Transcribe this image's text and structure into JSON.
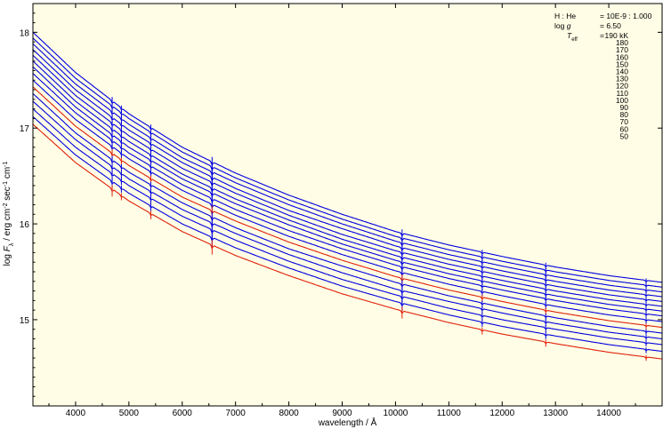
{
  "chart_data": {
    "type": "line",
    "xlabel": "wavelength / Å",
    "ylabel": {
      "parts": [
        "log ",
        "F",
        "λ",
        " / erg cm",
        "-2",
        " sec",
        "-1",
        " cm",
        "-1"
      ]
    },
    "xlim": [
      3200,
      15000
    ],
    "ylim": [
      14.1,
      18.3
    ],
    "xticks": [
      4000,
      5000,
      6000,
      7000,
      8000,
      9000,
      10000,
      11000,
      12000,
      13000,
      14000
    ],
    "yticks": [
      15,
      16,
      17,
      18
    ],
    "grid": false,
    "legend": "top-right",
    "background": "#fffde5",
    "colors": {
      "blue": "#0000e0",
      "red": "#e0200a",
      "axis": "#000000"
    },
    "params": [
      {
        "key": "H : He",
        "value": "= 10E-9 : 1.000"
      },
      {
        "key": "log g",
        "value": "= 6.50"
      },
      {
        "key": "Teff",
        "value": "="
      }
    ],
    "param_labels": {
      "logg_base": "log ",
      "logg_italic": "g",
      "teff_T": "T",
      "teff_sub": "eff"
    },
    "series": [
      {
        "name": "190 kK",
        "color": "#0000e0",
        "x": [
          3200,
          4000,
          5000,
          6000,
          7000,
          8000,
          9000,
          10000,
          11000,
          12000,
          13000,
          14000,
          15000
        ],
        "y": [
          18.0,
          17.58,
          17.15,
          16.8,
          16.53,
          16.3,
          16.1,
          15.92,
          15.78,
          15.66,
          15.55,
          15.46,
          15.39
        ]
      },
      {
        "name": "180",
        "color": "#0000e0",
        "x": [
          3200,
          4000,
          5000,
          6000,
          7000,
          8000,
          9000,
          10000,
          11000,
          12000,
          13000,
          14000,
          15000
        ],
        "y": [
          17.94,
          17.52,
          17.1,
          16.75,
          16.48,
          16.25,
          16.05,
          15.87,
          15.73,
          15.61,
          15.5,
          15.41,
          15.34
        ]
      },
      {
        "name": "170",
        "color": "#0000e0",
        "x": [
          3200,
          4000,
          5000,
          6000,
          7000,
          8000,
          9000,
          10000,
          11000,
          12000,
          13000,
          14000,
          15000
        ],
        "y": [
          17.88,
          17.46,
          17.04,
          16.69,
          16.43,
          16.2,
          16.0,
          15.82,
          15.68,
          15.56,
          15.45,
          15.36,
          15.29
        ]
      },
      {
        "name": "160",
        "color": "#0000e0",
        "x": [
          3200,
          4000,
          5000,
          6000,
          7000,
          8000,
          9000,
          10000,
          11000,
          12000,
          13000,
          14000,
          15000
        ],
        "y": [
          17.82,
          17.4,
          16.98,
          16.64,
          16.37,
          16.14,
          15.95,
          15.77,
          15.63,
          15.51,
          15.4,
          15.31,
          15.24
        ]
      },
      {
        "name": "150",
        "color": "#0000e0",
        "x": [
          3200,
          4000,
          5000,
          6000,
          7000,
          8000,
          9000,
          10000,
          11000,
          12000,
          13000,
          14000,
          15000
        ],
        "y": [
          17.76,
          17.34,
          16.92,
          16.58,
          16.32,
          16.09,
          15.89,
          15.72,
          15.58,
          15.46,
          15.35,
          15.26,
          15.19
        ]
      },
      {
        "name": "140",
        "color": "#0000e0",
        "x": [
          3200,
          4000,
          5000,
          6000,
          7000,
          8000,
          9000,
          10000,
          11000,
          12000,
          13000,
          14000,
          15000
        ],
        "y": [
          17.7,
          17.28,
          16.86,
          16.52,
          16.26,
          16.04,
          15.84,
          15.67,
          15.53,
          15.41,
          15.3,
          15.21,
          15.14
        ]
      },
      {
        "name": "130",
        "color": "#0000e0",
        "x": [
          3200,
          4000,
          5000,
          6000,
          7000,
          8000,
          9000,
          10000,
          11000,
          12000,
          13000,
          14000,
          15000
        ],
        "y": [
          17.64,
          17.22,
          16.8,
          16.47,
          16.21,
          15.99,
          15.79,
          15.62,
          15.48,
          15.36,
          15.25,
          15.16,
          15.09
        ]
      },
      {
        "name": "120",
        "color": "#0000e0",
        "x": [
          3200,
          4000,
          5000,
          6000,
          7000,
          8000,
          9000,
          10000,
          11000,
          12000,
          13000,
          14000,
          15000
        ],
        "y": [
          17.57,
          17.16,
          16.74,
          16.41,
          16.15,
          15.93,
          15.74,
          15.57,
          15.43,
          15.31,
          15.2,
          15.11,
          15.04
        ]
      },
      {
        "name": "110",
        "color": "#0000e0",
        "x": [
          3200,
          4000,
          5000,
          6000,
          7000,
          8000,
          9000,
          10000,
          11000,
          12000,
          13000,
          14000,
          15000
        ],
        "y": [
          17.5,
          17.09,
          16.68,
          16.35,
          16.09,
          15.87,
          15.68,
          15.51,
          15.37,
          15.25,
          15.14,
          15.05,
          14.98
        ]
      },
      {
        "name": "100",
        "color": "#e0200a",
        "x": [
          3200,
          4000,
          5000,
          6000,
          7000,
          8000,
          9000,
          10000,
          11000,
          12000,
          13000,
          14000,
          15000
        ],
        "y": [
          17.43,
          17.02,
          16.61,
          16.28,
          16.03,
          15.81,
          15.62,
          15.45,
          15.31,
          15.19,
          15.08,
          14.99,
          14.92
        ]
      },
      {
        "name": "90",
        "color": "#0000e0",
        "x": [
          3200,
          4000,
          5000,
          6000,
          7000,
          8000,
          9000,
          10000,
          11000,
          12000,
          13000,
          14000,
          15000
        ],
        "y": [
          17.36,
          16.95,
          16.54,
          16.22,
          15.96,
          15.74,
          15.56,
          15.39,
          15.25,
          15.13,
          15.02,
          14.93,
          14.86
        ]
      },
      {
        "name": "80",
        "color": "#0000e0",
        "x": [
          3200,
          4000,
          5000,
          6000,
          7000,
          8000,
          9000,
          10000,
          11000,
          12000,
          13000,
          14000,
          15000
        ],
        "y": [
          17.28,
          16.88,
          16.47,
          16.15,
          15.9,
          15.68,
          15.49,
          15.32,
          15.19,
          15.07,
          14.96,
          14.87,
          14.8
        ]
      },
      {
        "name": "70",
        "color": "#0000e0",
        "x": [
          3200,
          4000,
          5000,
          6000,
          7000,
          8000,
          9000,
          10000,
          11000,
          12000,
          13000,
          14000,
          15000
        ],
        "y": [
          17.2,
          16.8,
          16.4,
          16.08,
          15.83,
          15.61,
          15.42,
          15.26,
          15.12,
          15.0,
          14.9,
          14.81,
          14.74
        ]
      },
      {
        "name": "60",
        "color": "#0000e0",
        "x": [
          3200,
          4000,
          5000,
          6000,
          7000,
          8000,
          9000,
          10000,
          11000,
          12000,
          13000,
          14000,
          15000
        ],
        "y": [
          17.12,
          16.72,
          16.32,
          16.0,
          15.75,
          15.54,
          15.35,
          15.19,
          15.05,
          14.93,
          14.83,
          14.74,
          14.67
        ]
      },
      {
        "name": "50",
        "color": "#e0200a",
        "x": [
          3200,
          4000,
          5000,
          6000,
          7000,
          8000,
          9000,
          10000,
          11000,
          12000,
          13000,
          14000,
          15000
        ],
        "y": [
          17.04,
          16.64,
          16.24,
          15.92,
          15.67,
          15.46,
          15.27,
          15.11,
          14.97,
          14.85,
          14.75,
          14.66,
          14.59
        ]
      }
    ],
    "absorption_features": [
      {
        "x": 4686,
        "depth": 0.08
      },
      {
        "x": 4859,
        "depth": 0.05
      },
      {
        "x": 5411,
        "depth": 0.06
      },
      {
        "x": 6560,
        "depth": 0.1
      },
      {
        "x": 10124,
        "depth": 0.08
      },
      {
        "x": 11626,
        "depth": 0.05
      },
      {
        "x": 12818,
        "depth": 0.05
      },
      {
        "x": 14700,
        "depth": 0.04
      }
    ]
  }
}
